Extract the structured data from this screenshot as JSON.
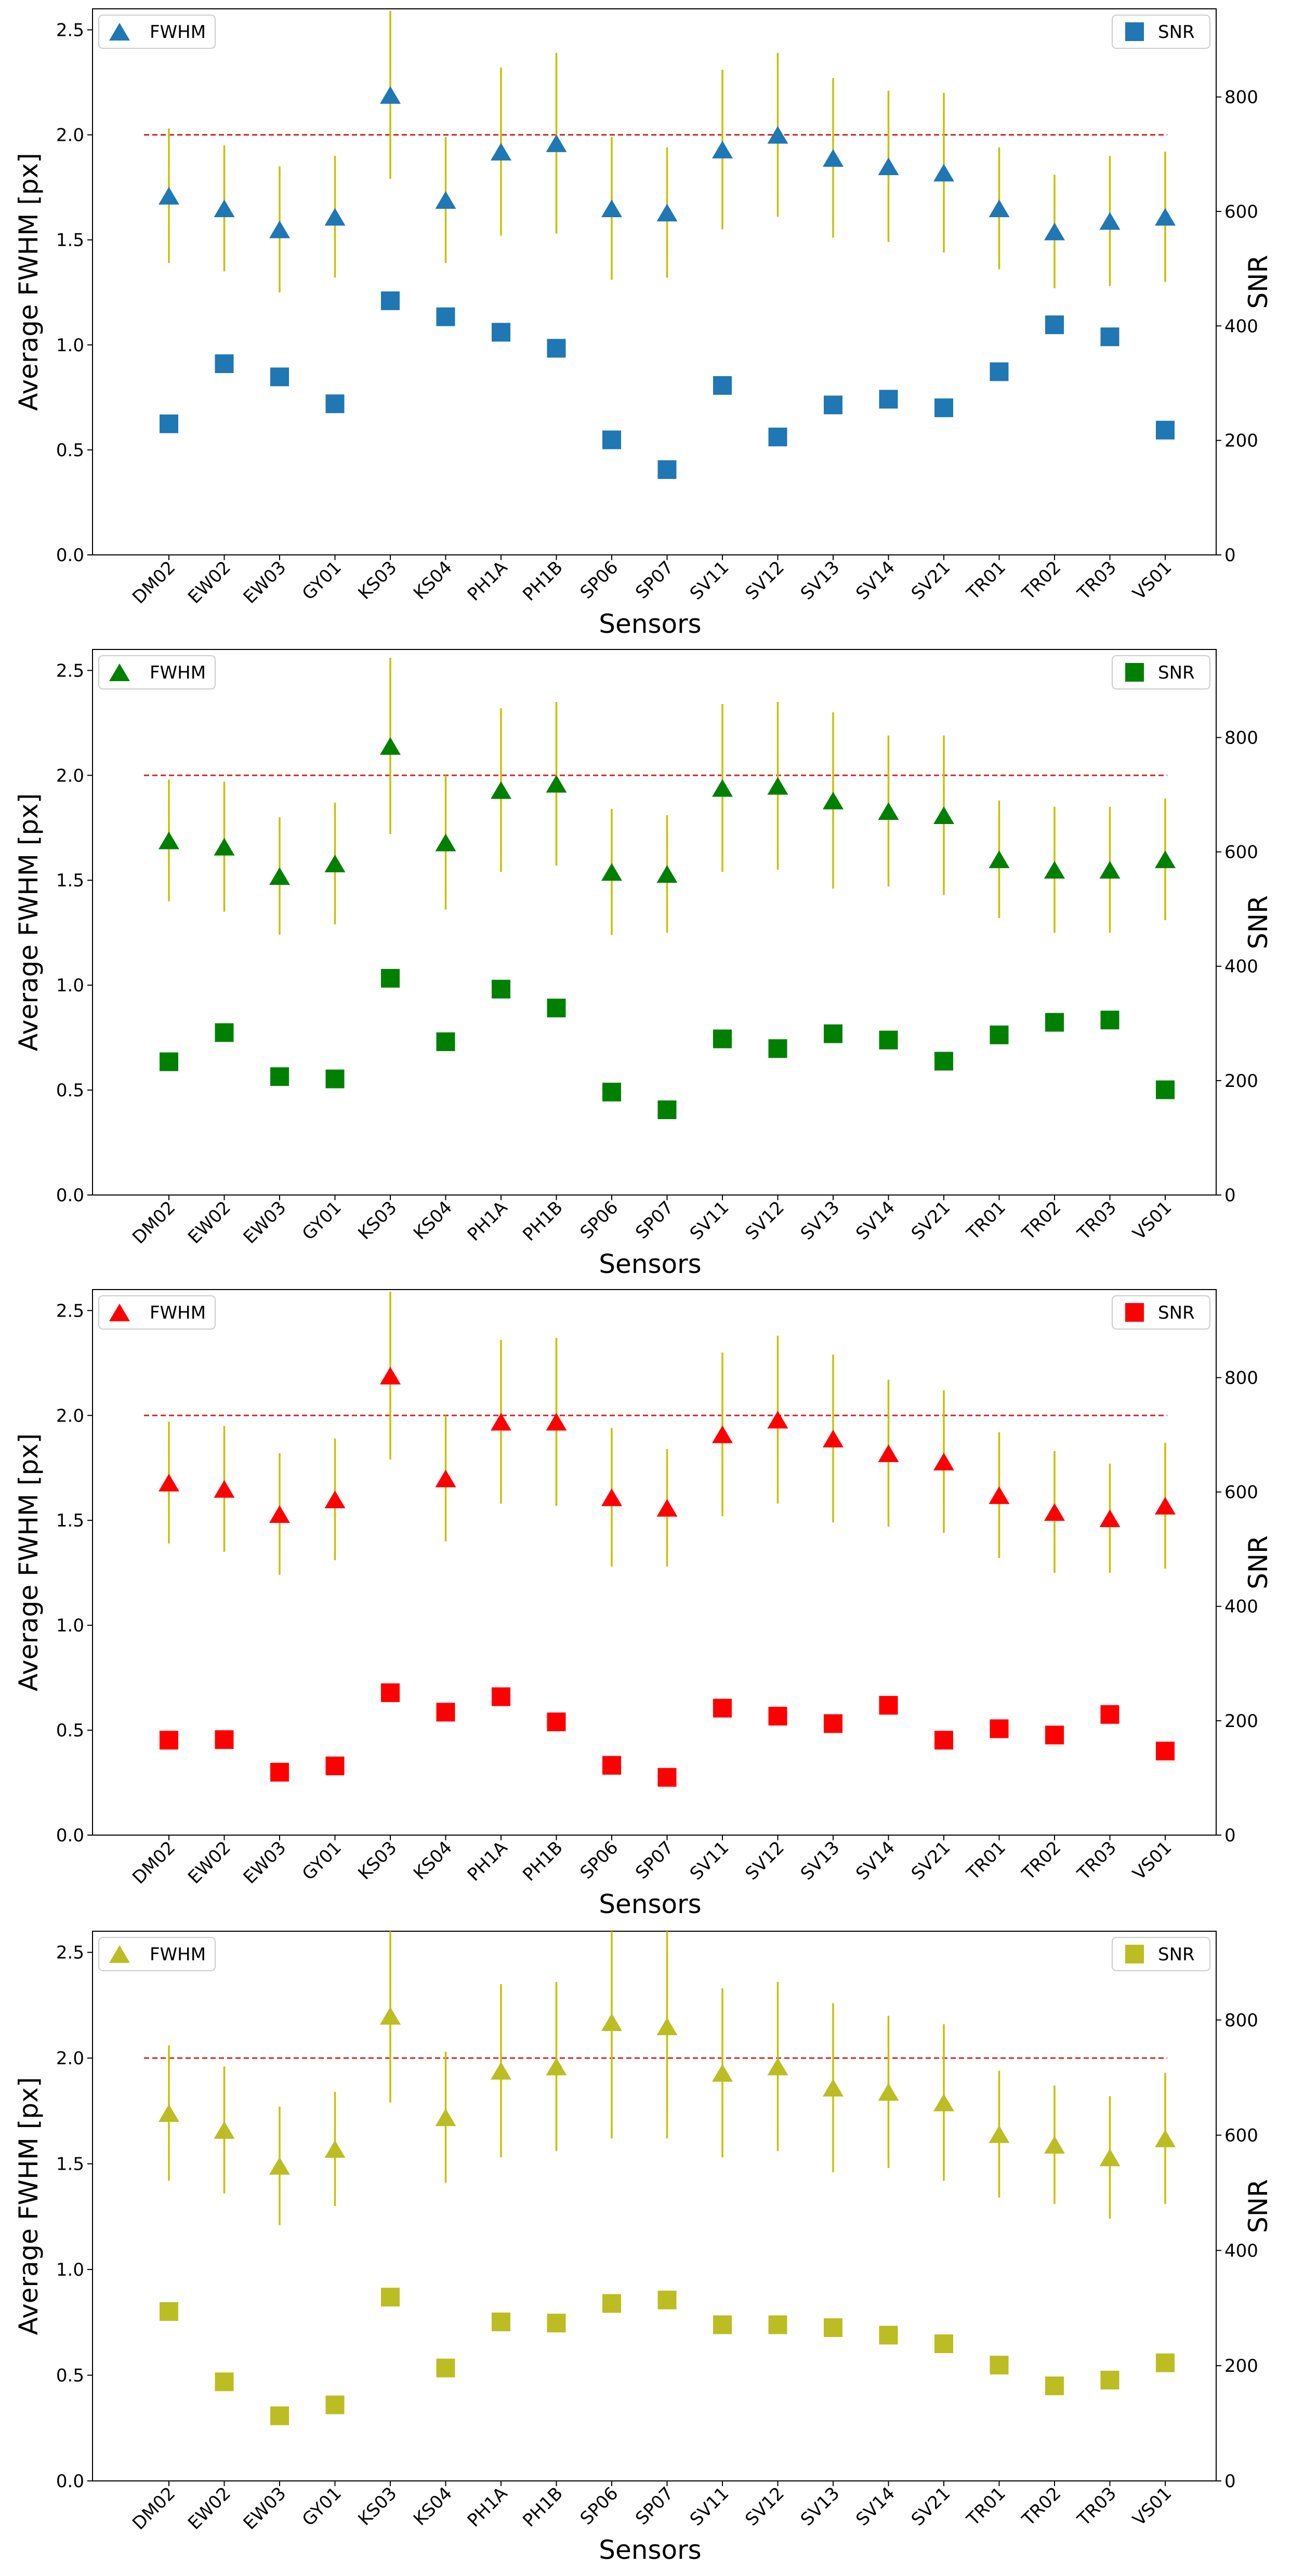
{
  "chart_data": [
    {
      "type": "scatter",
      "color": "#1f77b4",
      "error_color": "#c8c000",
      "reference_color": "#d62728",
      "categories": [
        "DM02",
        "EW02",
        "EW03",
        "GY01",
        "KS03",
        "KS04",
        "PH1A",
        "PH1B",
        "SP06",
        "SP07",
        "SV11",
        "SV12",
        "SV13",
        "SV14",
        "SV21",
        "TR01",
        "TR02",
        "TR03",
        "VS01"
      ],
      "xlabel": "Sensors",
      "ylabel": "Average FWHM [px]",
      "ylabel_right": "SNR",
      "ylim": [
        0,
        2.6
      ],
      "ylim_right": [
        0,
        954
      ],
      "yticks": [
        "0.0",
        "0.5",
        "1.0",
        "1.5",
        "2.0",
        "2.5"
      ],
      "yticks_right": [
        "0",
        "200",
        "400",
        "600",
        "800"
      ],
      "reference_line": 2.0,
      "legend_left": "FWHM",
      "legend_right": "SNR",
      "fwhm": [
        1.71,
        1.65,
        1.55,
        1.61,
        2.19,
        1.69,
        1.92,
        1.96,
        1.65,
        1.63,
        1.93,
        2.0,
        1.89,
        1.85,
        1.82,
        1.65,
        1.54,
        1.59,
        1.61
      ],
      "fwhm_err": [
        0.32,
        0.3,
        0.3,
        0.29,
        0.4,
        0.3,
        0.4,
        0.43,
        0.34,
        0.31,
        0.38,
        0.39,
        0.38,
        0.36,
        0.38,
        0.29,
        0.27,
        0.31,
        0.31
      ],
      "snr": [
        229,
        334,
        311,
        264,
        444,
        416,
        389,
        361,
        201,
        149,
        296,
        206,
        262,
        272,
        257,
        320,
        402,
        381,
        218
      ]
    },
    {
      "type": "scatter",
      "color": "#008000",
      "error_color": "#c8c000",
      "reference_color": "#d62728",
      "categories": [
        "DM02",
        "EW02",
        "EW03",
        "GY01",
        "KS03",
        "KS04",
        "PH1A",
        "PH1B",
        "SP06",
        "SP07",
        "SV11",
        "SV12",
        "SV13",
        "SV14",
        "SV21",
        "TR01",
        "TR02",
        "TR03",
        "VS01"
      ],
      "xlabel": "Sensors",
      "ylabel": "Average FWHM [px]",
      "ylabel_right": "SNR",
      "ylim": [
        0,
        2.6
      ],
      "ylim_right": [
        0,
        954
      ],
      "yticks": [
        "0.0",
        "0.5",
        "1.0",
        "1.5",
        "2.0",
        "2.5"
      ],
      "yticks_right": [
        "0",
        "200",
        "400",
        "600",
        "800"
      ],
      "reference_line": 2.0,
      "legend_left": "FWHM",
      "legend_right": "SNR",
      "fwhm": [
        1.69,
        1.66,
        1.52,
        1.58,
        2.14,
        1.68,
        1.93,
        1.96,
        1.54,
        1.53,
        1.94,
        1.95,
        1.88,
        1.83,
        1.81,
        1.6,
        1.55,
        1.55,
        1.6
      ],
      "fwhm_err": [
        0.29,
        0.31,
        0.28,
        0.29,
        0.42,
        0.32,
        0.39,
        0.39,
        0.3,
        0.28,
        0.4,
        0.4,
        0.42,
        0.36,
        0.38,
        0.28,
        0.3,
        0.3,
        0.29
      ],
      "snr": [
        233,
        284,
        207,
        203,
        379,
        268,
        360,
        327,
        180,
        149,
        273,
        256,
        282,
        271,
        234,
        280,
        302,
        306,
        184
      ]
    },
    {
      "type": "scatter",
      "color": "#ff0000",
      "error_color": "#c8c000",
      "reference_color": "#d62728",
      "categories": [
        "DM02",
        "EW02",
        "EW03",
        "GY01",
        "KS03",
        "KS04",
        "PH1A",
        "PH1B",
        "SP06",
        "SP07",
        "SV11",
        "SV12",
        "SV13",
        "SV14",
        "SV21",
        "TR01",
        "TR02",
        "TR03",
        "VS01"
      ],
      "xlabel": "Sensors",
      "ylabel": "Average FWHM [px]",
      "ylabel_right": "SNR",
      "ylim": [
        0,
        2.6
      ],
      "ylim_right": [
        0,
        954
      ],
      "yticks": [
        "0.0",
        "0.5",
        "1.0",
        "1.5",
        "2.0",
        "2.5"
      ],
      "yticks_right": [
        "0",
        "200",
        "400",
        "600",
        "800"
      ],
      "reference_line": 2.0,
      "legend_left": "FWHM",
      "legend_right": "SNR",
      "fwhm": [
        1.68,
        1.65,
        1.53,
        1.6,
        2.19,
        1.7,
        1.97,
        1.97,
        1.61,
        1.56,
        1.91,
        1.98,
        1.89,
        1.82,
        1.78,
        1.62,
        1.54,
        1.51,
        1.57
      ],
      "fwhm_err": [
        0.29,
        0.3,
        0.29,
        0.29,
        0.4,
        0.3,
        0.39,
        0.4,
        0.33,
        0.28,
        0.39,
        0.4,
        0.4,
        0.35,
        0.34,
        0.3,
        0.29,
        0.26,
        0.3
      ],
      "snr": [
        166,
        167,
        110,
        121,
        249,
        215,
        242,
        198,
        122,
        101,
        222,
        208,
        195,
        227,
        166,
        186,
        175,
        211,
        147
      ]
    },
    {
      "type": "scatter",
      "color": "#bcbd22",
      "error_color": "#c8c000",
      "reference_color": "#d62728",
      "categories": [
        "DM02",
        "EW02",
        "EW03",
        "GY01",
        "KS03",
        "KS04",
        "PH1A",
        "PH1B",
        "SP06",
        "SP07",
        "SV11",
        "SV12",
        "SV13",
        "SV14",
        "SV21",
        "TR01",
        "TR02",
        "TR03",
        "VS01"
      ],
      "xlabel": "Sensors",
      "ylabel": "Average FWHM [px]",
      "ylabel_right": "SNR",
      "ylim": [
        0,
        2.6
      ],
      "ylim_right": [
        0,
        954
      ],
      "yticks": [
        "0.0",
        "0.5",
        "1.0",
        "1.5",
        "2.0",
        "2.5"
      ],
      "yticks_right": [
        "0",
        "200",
        "400",
        "600",
        "800"
      ],
      "reference_line": 2.0,
      "legend_left": "FWHM",
      "legend_right": "SNR",
      "fwhm": [
        1.74,
        1.66,
        1.49,
        1.57,
        2.2,
        1.72,
        1.94,
        1.96,
        2.17,
        2.15,
        1.93,
        1.96,
        1.86,
        1.84,
        1.79,
        1.64,
        1.59,
        1.53,
        1.62
      ],
      "fwhm_err": [
        0.32,
        0.3,
        0.28,
        0.27,
        0.41,
        0.31,
        0.41,
        0.4,
        0.55,
        0.53,
        0.4,
        0.4,
        0.4,
        0.36,
        0.37,
        0.3,
        0.28,
        0.29,
        0.31
      ],
      "snr": [
        294,
        172,
        113,
        132,
        319,
        196,
        276,
        274,
        308,
        314,
        271,
        271,
        266,
        253,
        238,
        201,
        165,
        175,
        205
      ]
    }
  ]
}
